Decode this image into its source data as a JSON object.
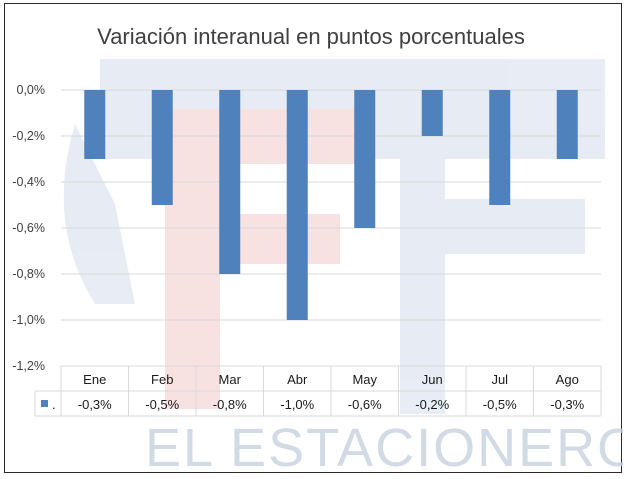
{
  "watermark": {
    "text": "EL ESTACIONERO"
  },
  "chart_data": {
    "type": "bar",
    "title": "Variación interanual en puntos porcentuales",
    "categories": [
      "Ene",
      "Feb",
      "Mar",
      "Abr",
      "May",
      "Jun",
      "Jul",
      "Ago"
    ],
    "series": [
      {
        "name": ".",
        "values": [
          -0.3,
          -0.5,
          -0.8,
          -1.0,
          -0.6,
          -0.2,
          -0.5,
          -0.3
        ]
      }
    ],
    "value_labels": [
      "-0,3%",
      "-0,5%",
      "-0,8%",
      "-1,0%",
      "-0,6%",
      "-0,2%",
      "-0,5%",
      "-0,3%"
    ],
    "yticks": [
      0.0,
      -0.2,
      -0.4,
      -0.6,
      -0.8,
      -1.0,
      -1.2
    ],
    "ytick_labels": [
      "0,0%",
      "-0,2%",
      "-0,4%",
      "-0,6%",
      "-0,8%",
      "-1,0%",
      "-1,2%"
    ],
    "ylim": [
      -1.2,
      0.0
    ],
    "grid": true,
    "legend": "data-table",
    "colors": {
      "bar": "#4f81bd",
      "grid": "#d9d9d9",
      "text": "#404040"
    }
  }
}
